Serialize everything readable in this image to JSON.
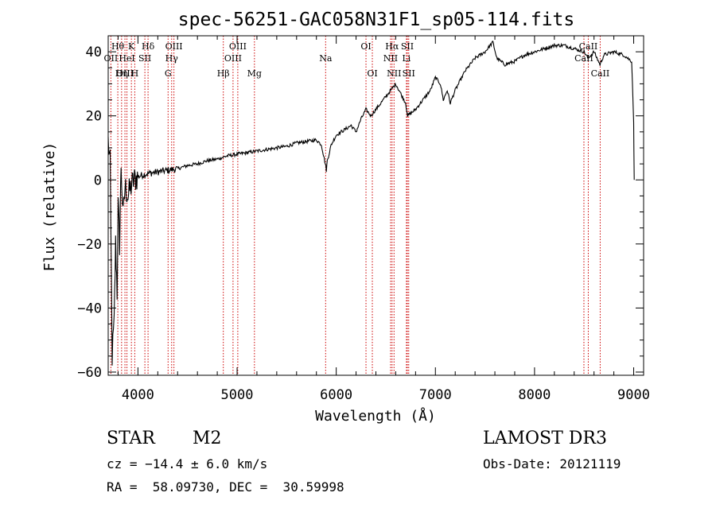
{
  "chart_data": {
    "type": "line",
    "title": "spec-56251-GAC058N31F1_sp05-114.fits",
    "xlabel": "Wavelength (Å)",
    "ylabel": "Flux (relative)",
    "xlim": [
      3700,
      9100
    ],
    "ylim": [
      -61,
      45
    ],
    "x_ticks": [
      4000,
      5000,
      6000,
      7000,
      8000,
      9000
    ],
    "y_ticks": [
      -60,
      -40,
      -20,
      0,
      20,
      40
    ],
    "line_color": "#000000",
    "marker_color": "#cc0000",
    "series": [
      {
        "name": "flux",
        "points": [
          [
            3700,
            12
          ],
          [
            3720,
            5
          ],
          [
            3740,
            -55
          ],
          [
            3760,
            -45
          ],
          [
            3775,
            -20
          ],
          [
            3790,
            -35
          ],
          [
            3800,
            -8
          ],
          [
            3815,
            -20
          ],
          [
            3830,
            5
          ],
          [
            3850,
            -12
          ],
          [
            3870,
            -2
          ],
          [
            3900,
            -5
          ],
          [
            3930,
            -2
          ],
          [
            3960,
            0
          ],
          [
            4000,
            1
          ],
          [
            4040,
            1.5
          ],
          [
            4100,
            2
          ],
          [
            4200,
            2.5
          ],
          [
            4300,
            3
          ],
          [
            4400,
            3.5
          ],
          [
            4500,
            4.5
          ],
          [
            4600,
            5
          ],
          [
            4700,
            6
          ],
          [
            4800,
            6.5
          ],
          [
            4900,
            7.5
          ],
          [
            5000,
            8
          ],
          [
            5100,
            8.5
          ],
          [
            5200,
            9
          ],
          [
            5300,
            9.5
          ],
          [
            5400,
            10
          ],
          [
            5500,
            10.5
          ],
          [
            5600,
            11.5
          ],
          [
            5700,
            12
          ],
          [
            5800,
            12.5
          ],
          [
            5850,
            11
          ],
          [
            5890,
            5
          ],
          [
            5900,
            3
          ],
          [
            5910,
            6
          ],
          [
            5950,
            11
          ],
          [
            6000,
            14
          ],
          [
            6050,
            15
          ],
          [
            6100,
            16
          ],
          [
            6150,
            17
          ],
          [
            6200,
            15
          ],
          [
            6250,
            19
          ],
          [
            6300,
            22
          ],
          [
            6350,
            20
          ],
          [
            6400,
            22
          ],
          [
            6450,
            24
          ],
          [
            6500,
            26
          ],
          [
            6550,
            28
          ],
          [
            6600,
            30
          ],
          [
            6650,
            27
          ],
          [
            6700,
            24
          ],
          [
            6720,
            20
          ],
          [
            6760,
            21
          ],
          [
            6800,
            22
          ],
          [
            6850,
            24
          ],
          [
            6900,
            26
          ],
          [
            6950,
            28
          ],
          [
            7000,
            32
          ],
          [
            7050,
            30
          ],
          [
            7080,
            25
          ],
          [
            7120,
            28
          ],
          [
            7150,
            24
          ],
          [
            7200,
            28
          ],
          [
            7300,
            34
          ],
          [
            7400,
            38
          ],
          [
            7500,
            40
          ],
          [
            7580,
            43
          ],
          [
            7620,
            38
          ],
          [
            7700,
            36
          ],
          [
            7800,
            37
          ],
          [
            7900,
            39
          ],
          [
            8000,
            40
          ],
          [
            8100,
            41
          ],
          [
            8200,
            42
          ],
          [
            8300,
            42
          ],
          [
            8400,
            41
          ],
          [
            8500,
            40
          ],
          [
            8540,
            38
          ],
          [
            8600,
            40
          ],
          [
            8660,
            36
          ],
          [
            8700,
            39
          ],
          [
            8800,
            40
          ],
          [
            8900,
            39
          ],
          [
            8980,
            37
          ],
          [
            9000,
            18
          ],
          [
            9005,
            0
          ]
        ]
      }
    ],
    "lines": [
      {
        "label": "Hθ",
        "wave": 3797,
        "row": 0
      },
      {
        "label": "OII",
        "wave": 3727,
        "row": 1
      },
      {
        "label": "OIII",
        "wave": 3869,
        "row": 2
      },
      {
        "label": "K",
        "wave": 3934,
        "row": 0
      },
      {
        "label": "HeI",
        "wave": 3889,
        "row": 1
      },
      {
        "label": "Hη",
        "wave": 3835,
        "row": 2
      },
      {
        "label": "Hδ",
        "wave": 4102,
        "row": 0
      },
      {
        "label": "SII",
        "wave": 4070,
        "row": 1
      },
      {
        "label": "H",
        "wave": 3968,
        "row": 2
      },
      {
        "label": "OIII",
        "wave": 4363,
        "row": 0
      },
      {
        "label": "Hγ",
        "wave": 4340,
        "row": 1
      },
      {
        "label": "G",
        "wave": 4304,
        "row": 2
      },
      {
        "label": "OIII",
        "wave": 5007,
        "row": 0
      },
      {
        "label": "OIII",
        "wave": 4959,
        "row": 1
      },
      {
        "label": "Hβ",
        "wave": 4861,
        "row": 2
      },
      {
        "label": "Mg",
        "wave": 5175,
        "row": 2
      },
      {
        "label": "Na",
        "wave": 5893,
        "row": 1
      },
      {
        "label": "OI",
        "wave": 6300,
        "row": 0
      },
      {
        "label": "OI",
        "wave": 6364,
        "row": 2
      },
      {
        "label": "Hα",
        "wave": 6563,
        "row": 0
      },
      {
        "label": "NII",
        "wave": 6548,
        "row": 1
      },
      {
        "label": "NII",
        "wave": 6583,
        "row": 2
      },
      {
        "label": "SII",
        "wave": 6717,
        "row": 0
      },
      {
        "label": "Li",
        "wave": 6708,
        "row": 1
      },
      {
        "label": "SII",
        "wave": 6731,
        "row": 2
      },
      {
        "label": "CaII",
        "wave": 8542,
        "row": 0
      },
      {
        "label": "CaII",
        "wave": 8498,
        "row": 1
      },
      {
        "label": "CaII",
        "wave": 8662,
        "row": 2
      }
    ]
  },
  "footer": {
    "object_class": "STAR",
    "subclass": "M2",
    "redshift": "cz = −14.4 ± 6.0 km/s",
    "coords": "RA =  58.09730, DEC =  30.59998",
    "survey": "LAMOST DR3",
    "obs_date": "Obs-Date: 20121119"
  }
}
